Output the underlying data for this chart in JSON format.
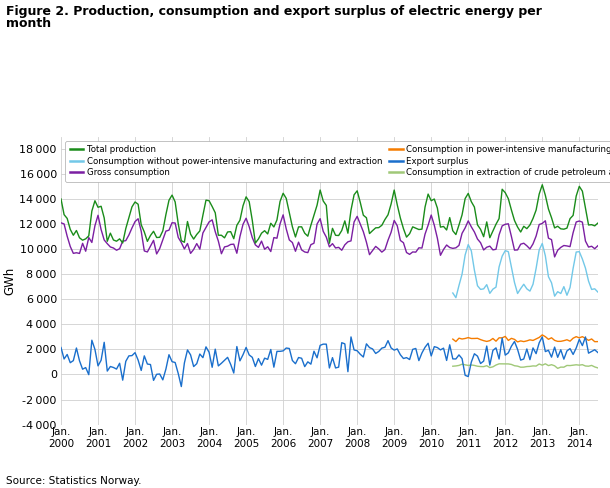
{
  "title": "Figure 2. Production, consumption and export surplus of electric energy per\nmonth",
  "ylabel": "GWh",
  "source": "Source: Statistics Norway.",
  "xlim_start": 2000.0,
  "xlim_end": 2014.5,
  "ylim": [
    -4000,
    19000
  ],
  "yticks": [
    -4000,
    -2000,
    0,
    2000,
    4000,
    6000,
    8000,
    10000,
    12000,
    14000,
    16000,
    18000
  ],
  "colors": {
    "total_production": "#1a8c1a",
    "gross_consumption": "#7b1fa2",
    "export_surplus": "#1a6fcc",
    "consumption_no_power": "#72c8e8",
    "consumption_power_intensive": "#f57c00",
    "consumption_extraction": "#a0c878"
  },
  "legend_labels": [
    "Total production",
    "Gross consumption",
    "Export surplus",
    "Consumption without power-intensive manufacturing and extraction",
    "Consumption in power-intensive manufacturing",
    "Consumption in extraction of crude petroleum and natural gas"
  ]
}
